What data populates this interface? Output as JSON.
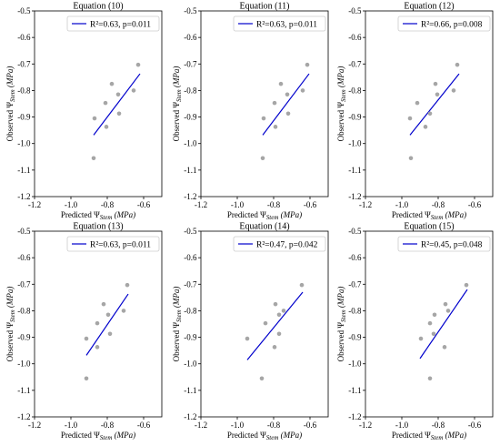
{
  "figure": {
    "ylabel_prefix": "Observed Ψ",
    "ylabel_sub": "Stem",
    "ylabel_unit": "(MPa)",
    "xlabel_prefix": "Predicted Ψ",
    "xlabel_sub": "Stem",
    "xlabel_unit": "(MPa)",
    "marker_color": "#a6a6a6",
    "line_color": "#0000cc"
  },
  "chart_data": [
    {
      "type": "scatter",
      "title": "Equation (10)",
      "legend": "R²=0.63, p=0.011",
      "xlim": [
        -1.2,
        -0.5
      ],
      "ylim": [
        -1.2,
        -0.5
      ],
      "xticks": [
        "-1.2",
        "-1.0",
        "-0.8",
        "-0.6"
      ],
      "yticks": [
        "-1.2",
        "-1.1",
        "-1.0",
        "-0.9",
        "-0.8",
        "-0.7",
        "-0.6",
        "-0.5"
      ],
      "points": [
        {
          "x": -0.875,
          "y": -1.055
        },
        {
          "x": -0.87,
          "y": -0.905
        },
        {
          "x": -0.81,
          "y": -0.847
        },
        {
          "x": -0.805,
          "y": -0.937
        },
        {
          "x": -0.775,
          "y": -0.775
        },
        {
          "x": -0.74,
          "y": -0.815
        },
        {
          "x": -0.735,
          "y": -0.887
        },
        {
          "x": -0.655,
          "y": -0.8
        },
        {
          "x": -0.63,
          "y": -0.703
        }
      ],
      "fit_line": [
        {
          "x": -0.875,
          "y": -0.968
        },
        {
          "x": -0.62,
          "y": -0.737
        }
      ]
    },
    {
      "type": "scatter",
      "title": "Equation (11)",
      "legend": "R²=0.63, p=0.011",
      "xlim": [
        -1.2,
        -0.5
      ],
      "ylim": [
        -1.2,
        -0.5
      ],
      "xticks": [
        "-1.2",
        "-1.0",
        "-0.8",
        "-0.6"
      ],
      "yticks": [
        "-1.2",
        "-1.1",
        "-1.0",
        "-0.9",
        "-0.8",
        "-0.7",
        "-0.6",
        "-0.5"
      ],
      "points": [
        {
          "x": -0.86,
          "y": -1.055
        },
        {
          "x": -0.855,
          "y": -0.905
        },
        {
          "x": -0.795,
          "y": -0.847
        },
        {
          "x": -0.79,
          "y": -0.937
        },
        {
          "x": -0.76,
          "y": -0.775
        },
        {
          "x": -0.725,
          "y": -0.815
        },
        {
          "x": -0.72,
          "y": -0.887
        },
        {
          "x": -0.64,
          "y": -0.8
        },
        {
          "x": -0.615,
          "y": -0.703
        }
      ],
      "fit_line": [
        {
          "x": -0.86,
          "y": -0.968
        },
        {
          "x": -0.605,
          "y": -0.737
        }
      ]
    },
    {
      "type": "scatter",
      "title": "Equation (12)",
      "legend": "R²=0.66, p=0.008",
      "xlim": [
        -1.2,
        -0.5
      ],
      "ylim": [
        -1.2,
        -0.5
      ],
      "xticks": [
        "-1.2",
        "-1.0",
        "-0.8",
        "-0.6"
      ],
      "yticks": [
        "-1.2",
        "-1.1",
        "-1.0",
        "-0.9",
        "-0.8",
        "-0.7",
        "-0.6",
        "-0.5"
      ],
      "points": [
        {
          "x": -0.95,
          "y": -1.055
        },
        {
          "x": -0.955,
          "y": -0.905
        },
        {
          "x": -0.915,
          "y": -0.847
        },
        {
          "x": -0.87,
          "y": -0.937
        },
        {
          "x": -0.845,
          "y": -0.887
        },
        {
          "x": -0.815,
          "y": -0.775
        },
        {
          "x": -0.805,
          "y": -0.815
        },
        {
          "x": -0.715,
          "y": -0.8
        },
        {
          "x": -0.695,
          "y": -0.703
        }
      ],
      "fit_line": [
        {
          "x": -0.955,
          "y": -0.968
        },
        {
          "x": -0.685,
          "y": -0.737
        }
      ]
    },
    {
      "type": "scatter",
      "title": "Equation (13)",
      "legend": "R²=0.63, p=0.011",
      "xlim": [
        -1.2,
        -0.5
      ],
      "ylim": [
        -1.2,
        -0.5
      ],
      "xticks": [
        "-1.2",
        "-1.0",
        "-0.8",
        "-0.6"
      ],
      "yticks": [
        "-1.2",
        "-1.1",
        "-1.0",
        "-0.9",
        "-0.8",
        "-0.7",
        "-0.6",
        "-0.5"
      ],
      "points": [
        {
          "x": -0.915,
          "y": -1.055
        },
        {
          "x": -0.915,
          "y": -0.905
        },
        {
          "x": -0.855,
          "y": -0.847
        },
        {
          "x": -0.855,
          "y": -0.937
        },
        {
          "x": -0.82,
          "y": -0.775
        },
        {
          "x": -0.795,
          "y": -0.815
        },
        {
          "x": -0.785,
          "y": -0.887
        },
        {
          "x": -0.71,
          "y": -0.8
        },
        {
          "x": -0.69,
          "y": -0.703
        }
      ],
      "fit_line": [
        {
          "x": -0.915,
          "y": -0.968
        },
        {
          "x": -0.685,
          "y": -0.737
        }
      ]
    },
    {
      "type": "scatter",
      "title": "Equation (14)",
      "legend": "R²=0.47, p=0.042",
      "xlim": [
        -1.2,
        -0.5
      ],
      "ylim": [
        -1.2,
        -0.5
      ],
      "xticks": [
        "-1.2",
        "-1.0",
        "-0.8",
        "-0.6"
      ],
      "yticks": [
        "-1.2",
        "-1.1",
        "-1.0",
        "-0.9",
        "-0.8",
        "-0.7",
        "-0.6",
        "-0.5"
      ],
      "points": [
        {
          "x": -0.945,
          "y": -0.905
        },
        {
          "x": -0.865,
          "y": -1.055
        },
        {
          "x": -0.845,
          "y": -0.847
        },
        {
          "x": -0.79,
          "y": -0.775
        },
        {
          "x": -0.795,
          "y": -0.937
        },
        {
          "x": -0.77,
          "y": -0.815
        },
        {
          "x": -0.77,
          "y": -0.887
        },
        {
          "x": -0.745,
          "y": -0.8
        },
        {
          "x": -0.645,
          "y": -0.703
        }
      ],
      "fit_line": [
        {
          "x": -0.945,
          "y": -0.985
        },
        {
          "x": -0.64,
          "y": -0.73
        }
      ]
    },
    {
      "type": "scatter",
      "title": "Equation (15)",
      "legend": "R²=0.45, p=0.048",
      "xlim": [
        -1.2,
        -0.5
      ],
      "ylim": [
        -1.2,
        -0.5
      ],
      "xticks": [
        "-1.2",
        "-1.0",
        "-0.8",
        "-0.6"
      ],
      "yticks": [
        "-1.2",
        "-1.1",
        "-1.0",
        "-0.9",
        "-0.8",
        "-0.7",
        "-0.6",
        "-0.5"
      ],
      "points": [
        {
          "x": -0.895,
          "y": -0.905
        },
        {
          "x": -0.845,
          "y": -1.055
        },
        {
          "x": -0.845,
          "y": -0.847
        },
        {
          "x": -0.82,
          "y": -0.815
        },
        {
          "x": -0.825,
          "y": -0.887
        },
        {
          "x": -0.76,
          "y": -0.775
        },
        {
          "x": -0.765,
          "y": -0.937
        },
        {
          "x": -0.745,
          "y": -0.8
        },
        {
          "x": -0.645,
          "y": -0.703
        }
      ],
      "fit_line": [
        {
          "x": -0.9,
          "y": -0.98
        },
        {
          "x": -0.64,
          "y": -0.72
        }
      ]
    }
  ]
}
